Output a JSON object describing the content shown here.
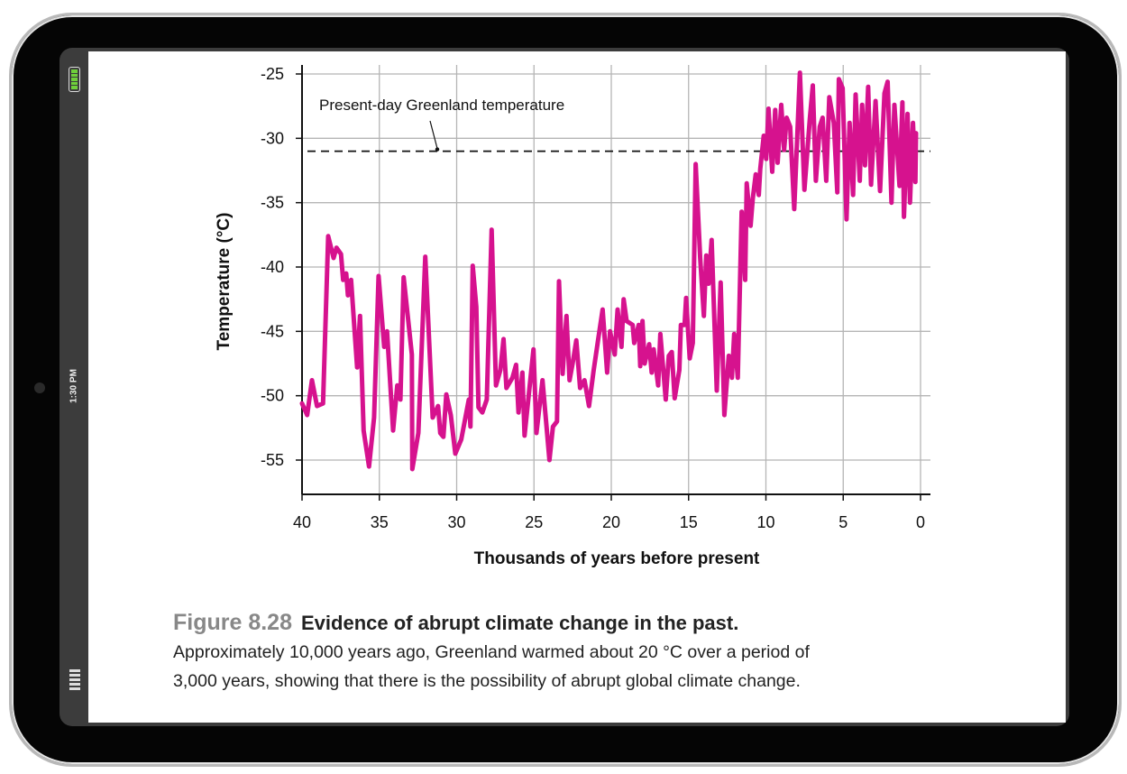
{
  "device": {
    "time": "1:30 PM",
    "battery_level": 1.0,
    "battery_color": "#6fcf3a"
  },
  "caption": {
    "figure_number": "Figure 8.28",
    "title": "Evidence of abrupt climate change in the past.",
    "text_line1": "Approximately 10,000 years ago, Greenland warmed about 20 °C over a period of",
    "text_line2": "3,000 years, showing that there is the possibility of abrupt global climate change."
  },
  "chart_data": {
    "type": "line",
    "xlabel": "Thousands of years before present",
    "ylabel": "Temperature (°C)",
    "xlim": [
      40,
      0
    ],
    "ylim": [
      -57.5,
      -24.5
    ],
    "xticks": [
      "40",
      "35",
      "30",
      "25",
      "20",
      "15",
      "10",
      "5",
      "0"
    ],
    "yticks": [
      "-25",
      "-30",
      "-35",
      "-40",
      "-45",
      "-50",
      "-55"
    ],
    "grid": true,
    "line_color": "#d6128e",
    "reference_line": {
      "label": "Present-day Greenland temperature",
      "y": -31.0,
      "style": "dashed"
    },
    "x": [
      40,
      39.67,
      39.36,
      39.03,
      38.64,
      38.31,
      37.96,
      37.77,
      37.48,
      37.34,
      37.14,
      37.03,
      36.83,
      36.44,
      36.25,
      36.02,
      35.67,
      35.34,
      35.05,
      34.69,
      34.5,
      34.11,
      33.84,
      33.64,
      33.43,
      32.9,
      32.87,
      32.48,
      32.03,
      31.55,
      31.2,
      31.06,
      30.86,
      30.67,
      30.38,
      30.09,
      29.7,
      29.21,
      29.11,
      28.96,
      28.73,
      28.59,
      28.34,
      28.05,
      27.74,
      27.46,
      27.17,
      26.97,
      26.78,
      26.39,
      26.16,
      26.0,
      25.75,
      25.61,
      25.03,
      24.84,
      24.45,
      24.0,
      23.77,
      23.51,
      23.38,
      23.15,
      22.9,
      22.7,
      22.5,
      22.26,
      22.02,
      21.73,
      21.44,
      21.15,
      20.86,
      20.56,
      20.27,
      20.08,
      19.78,
      19.59,
      19.34,
      19.2,
      19.01,
      18.62,
      18.52,
      18.23,
      18.13,
      17.98,
      17.84,
      17.55,
      17.39,
      17.26,
      16.97,
      16.83,
      16.48,
      16.28,
      16.09,
      15.9,
      15.6,
      15.5,
      15.26,
      15.16,
      14.93,
      14.73,
      14.54,
      14.25,
      14.01,
      13.86,
      13.71,
      13.51,
      13.18,
      12.93,
      12.69,
      12.4,
      12.2,
      12.05,
      11.82,
      11.57,
      11.34,
      11.24,
      10.99,
      10.85,
      10.66,
      10.46,
      10.37,
      10.14,
      9.98,
      9.83,
      9.59,
      9.4,
      9.24,
      9.01,
      8.82,
      8.66,
      8.43,
      8.17,
      7.8,
      7.51,
      7.16,
      6.97,
      6.77,
      6.52,
      6.33,
      6.1,
      5.9,
      5.61,
      5.38,
      5.28,
      5.04,
      4.79,
      4.59,
      4.36,
      4.2,
      3.93,
      3.78,
      3.59,
      3.39,
      3.2,
      2.91,
      2.62,
      2.33,
      2.13,
      1.88,
      1.69,
      1.36,
      1.17,
      1.07,
      0.84,
      0.68,
      0.49,
      0.33,
      0.29
    ],
    "y": [
      -50.6,
      -51.5,
      -48.8,
      -50.8,
      -50.6,
      -37.6,
      -39.3,
      -38.5,
      -39.0,
      -41.0,
      -40.5,
      -42.2,
      -41.0,
      -47.8,
      -43.8,
      -52.7,
      -55.5,
      -51.7,
      -40.7,
      -46.2,
      -45.0,
      -52.7,
      -49.2,
      -50.3,
      -40.8,
      -46.8,
      -55.7,
      -52.9,
      -39.2,
      -51.7,
      -50.8,
      -52.9,
      -53.2,
      -49.9,
      -51.5,
      -54.5,
      -53.4,
      -50.3,
      -52.4,
      -39.9,
      -43.1,
      -50.9,
      -51.3,
      -50.3,
      -37.1,
      -49.2,
      -48.0,
      -45.6,
      -49.4,
      -48.6,
      -47.6,
      -51.3,
      -48.2,
      -53.1,
      -46.4,
      -52.9,
      -48.8,
      -55.0,
      -52.4,
      -52.0,
      -41.1,
      -48.3,
      -43.8,
      -48.8,
      -47.5,
      -45.7,
      -49.4,
      -48.8,
      -50.8,
      -48.1,
      -45.7,
      -43.3,
      -48.2,
      -45.0,
      -46.8,
      -43.3,
      -46.2,
      -42.5,
      -44.2,
      -44.5,
      -45.9,
      -44.5,
      -47.7,
      -44.2,
      -47.5,
      -46.0,
      -48.2,
      -46.4,
      -49.2,
      -45.2,
      -50.3,
      -46.9,
      -46.6,
      -50.2,
      -48.0,
      -44.5,
      -44.5,
      -42.4,
      -47.1,
      -45.9,
      -32.0,
      -39.3,
      -43.8,
      -39.1,
      -41.3,
      -37.9,
      -49.6,
      -41.2,
      -51.5,
      -46.9,
      -48.6,
      -45.2,
      -48.6,
      -35.7,
      -41.0,
      -33.5,
      -36.8,
      -34.7,
      -32.8,
      -34.4,
      -32.4,
      -29.8,
      -31.6,
      -27.7,
      -32.6,
      -27.8,
      -31.9,
      -27.4,
      -30.9,
      -28.4,
      -29.1,
      -35.5,
      -24.9,
      -34.0,
      -28.5,
      -25.9,
      -33.3,
      -29.1,
      -28.4,
      -33.3,
      -26.8,
      -28.8,
      -34.2,
      -25.4,
      -26.1,
      -36.3,
      -28.8,
      -34.4,
      -26.6,
      -33.3,
      -27.4,
      -32.1,
      -26.0,
      -33.6,
      -27.1,
      -34.1,
      -26.5,
      -25.6,
      -35.0,
      -27.4,
      -33.7,
      -27.2,
      -36.1,
      -28.1,
      -35.0,
      -28.8,
      -33.4,
      -29.6
    ]
  }
}
